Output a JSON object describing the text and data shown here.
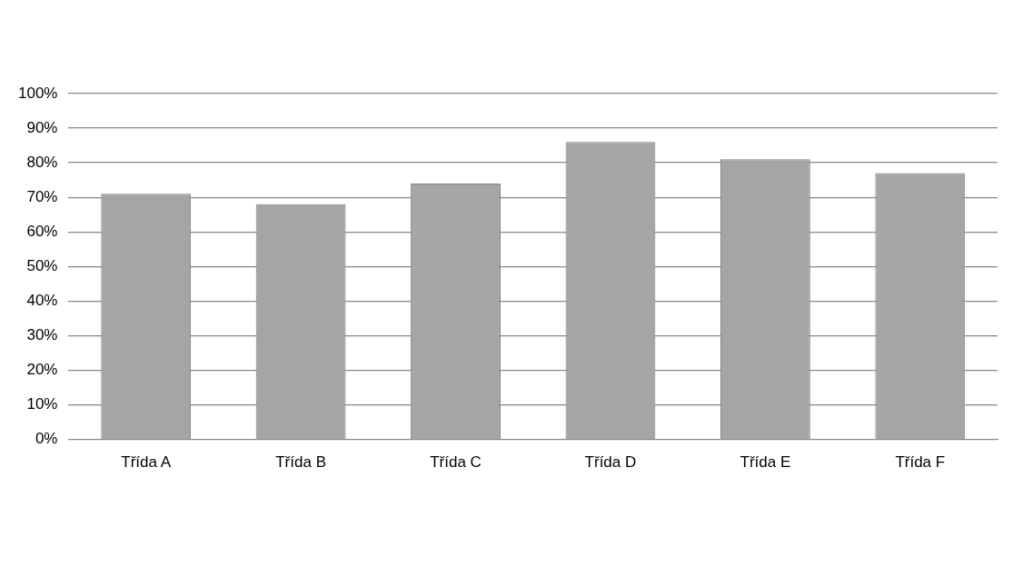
{
  "chart_data": {
    "type": "bar",
    "categories": [
      "Třída A",
      "Třída B",
      "Třída C",
      "Třída D",
      "Třída E",
      "Třída F"
    ],
    "values": [
      71,
      68,
      74,
      86,
      81,
      77
    ],
    "color": "#a5a5a5",
    "ylim": [
      0,
      100
    ],
    "yticks": [
      {
        "value": 0,
        "label": "0%"
      },
      {
        "value": 10,
        "label": "10%"
      },
      {
        "value": 20,
        "label": "20%"
      },
      {
        "value": 30,
        "label": "30%"
      },
      {
        "value": 40,
        "label": "40%"
      },
      {
        "value": 50,
        "label": "50%"
      },
      {
        "value": 60,
        "label": "60%"
      },
      {
        "value": 70,
        "label": "70%"
      },
      {
        "value": 80,
        "label": "80%"
      },
      {
        "value": 90,
        "label": "90%"
      },
      {
        "value": 100,
        "label": "100%"
      }
    ],
    "grid": "y",
    "legend": false
  }
}
